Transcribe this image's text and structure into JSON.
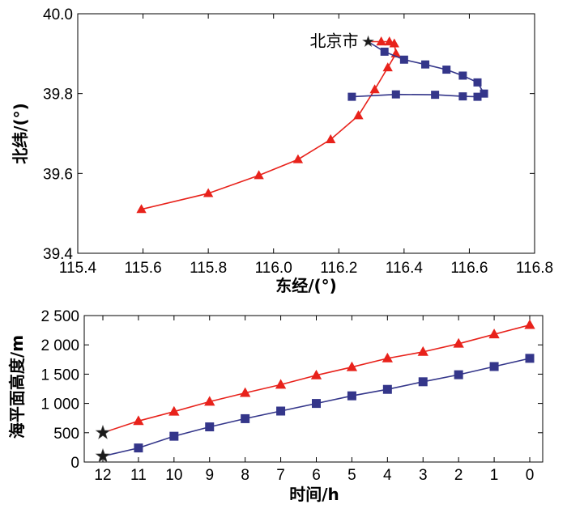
{
  "colors": {
    "red": "#e8221b",
    "blue": "#34368a",
    "black": "#1a1a1a"
  },
  "chart_data": [
    {
      "type": "line",
      "xlabel": "东经/(°)",
      "ylabel": "北纬/(°)",
      "xlim": [
        115.4,
        116.8
      ],
      "ylim": [
        39.4,
        40.0
      ],
      "xticks": [
        115.4,
        115.6,
        115.8,
        116.0,
        116.2,
        116.4,
        116.6,
        116.8
      ],
      "xtick_labels": [
        "115.4",
        "115.6",
        "115.8",
        "116.0",
        "116.2",
        "116.4",
        "116.6",
        "116.8"
      ],
      "yticks": [
        39.4,
        39.6,
        39.8,
        40.0
      ],
      "ytick_labels": [
        "39.4",
        "39.6",
        "39.8",
        "40.0"
      ],
      "grid": false,
      "annotation": {
        "text": "北京市",
        "x": 116.29,
        "y": 39.93,
        "marker": "star"
      },
      "series": [
        {
          "marker": "triangle",
          "color": "#e8221b",
          "points": [
            [
              116.29,
              39.93
            ],
            [
              116.33,
              39.93
            ],
            [
              116.355,
              39.93
            ],
            [
              116.37,
              39.925
            ],
            [
              116.375,
              39.9
            ],
            [
              116.35,
              39.865
            ],
            [
              116.31,
              39.81
            ],
            [
              116.26,
              39.745
            ],
            [
              116.175,
              39.685
            ],
            [
              116.075,
              39.635
            ],
            [
              115.955,
              39.595
            ],
            [
              115.8,
              39.55
            ],
            [
              115.595,
              39.51
            ]
          ]
        },
        {
          "marker": "square",
          "color": "#34368a",
          "points": [
            [
              116.29,
              39.93
            ],
            [
              116.34,
              39.905
            ],
            [
              116.4,
              39.885
            ],
            [
              116.465,
              39.873
            ],
            [
              116.53,
              39.86
            ],
            [
              116.58,
              39.845
            ],
            [
              116.625,
              39.828
            ],
            [
              116.645,
              39.8
            ],
            [
              116.625,
              39.792
            ],
            [
              116.58,
              39.793
            ],
            [
              116.495,
              39.797
            ],
            [
              116.375,
              39.798
            ],
            [
              116.24,
              39.792
            ]
          ]
        }
      ]
    },
    {
      "type": "line",
      "xlabel": "时间/h",
      "ylabel": "海平面高度/m",
      "xlim": [
        12,
        0
      ],
      "ylim": [
        0,
        2500
      ],
      "xticks": [
        12,
        11,
        10,
        9,
        8,
        7,
        6,
        5,
        4,
        3,
        2,
        1,
        0
      ],
      "xtick_labels": [
        "12",
        "11",
        "10",
        "9",
        "8",
        "7",
        "6",
        "5",
        "4",
        "3",
        "2",
        "1",
        "0"
      ],
      "yticks": [
        0,
        500,
        1000,
        1500,
        2000,
        2500
      ],
      "ytick_labels": [
        "0",
        "500",
        "1 000",
        "1 500",
        "2 000",
        "2 500"
      ],
      "grid": false,
      "series": [
        {
          "marker": "triangle",
          "color": "#e8221b",
          "start_marker": "star",
          "x": [
            12,
            11,
            10,
            9,
            8,
            7,
            6,
            5,
            4,
            3,
            2,
            1,
            0
          ],
          "y": [
            500,
            700,
            860,
            1030,
            1180,
            1320,
            1480,
            1620,
            1770,
            1880,
            2020,
            2180,
            2340
          ]
        },
        {
          "marker": "square",
          "color": "#34368a",
          "start_marker": "star",
          "x": [
            12,
            11,
            10,
            9,
            8,
            7,
            6,
            5,
            4,
            3,
            2,
            1,
            0
          ],
          "y": [
            100,
            240,
            440,
            600,
            740,
            870,
            1000,
            1130,
            1240,
            1370,
            1490,
            1630,
            1770
          ]
        }
      ]
    }
  ]
}
